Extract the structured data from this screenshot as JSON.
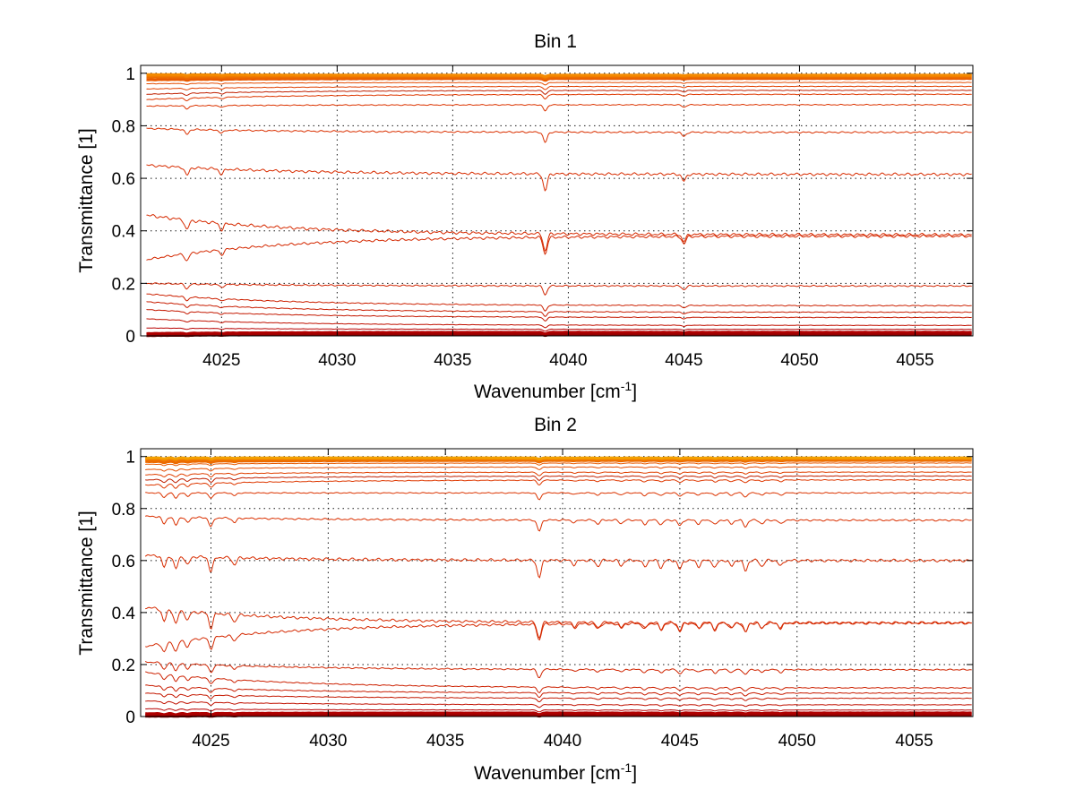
{
  "chart_data": [
    {
      "type": "line",
      "title": "Bin 1",
      "xlabel_main": "Wavenumber [cm",
      "xlabel_sup": "-1",
      "xlabel_end": "]",
      "ylabel": "Transmittance [1]",
      "xlim": [
        4021.5,
        4057.5
      ],
      "ylim": [
        0,
        1.03
      ],
      "xticks": [
        4025,
        4030,
        4035,
        4040,
        4045,
        4050,
        4055
      ],
      "yticks": [
        0,
        0.2,
        0.4,
        0.6,
        0.8,
        1
      ],
      "grid": true,
      "series_levels": [
        {
          "start": 0.0,
          "end": 0.005,
          "color": "#8b0000"
        },
        {
          "start": 0.006,
          "end": 0.01,
          "color": "#a00000"
        },
        {
          "start": 0.01,
          "end": 0.015,
          "color": "#b00000"
        },
        {
          "start": 0.03,
          "end": 0.025,
          "color": "#b80000"
        },
        {
          "start": 0.065,
          "end": 0.04,
          "color": "#c01000"
        },
        {
          "start": 0.1,
          "end": 0.07,
          "color": "#c41800"
        },
        {
          "start": 0.13,
          "end": 0.09,
          "color": "#c81c00"
        },
        {
          "start": 0.16,
          "end": 0.115,
          "color": "#cc2000"
        },
        {
          "start": 0.2,
          "end": 0.19,
          "color": "#d02400"
        },
        {
          "start": 0.29,
          "end": 0.38,
          "color": "#d42800"
        },
        {
          "start": 0.46,
          "end": 0.385,
          "color": "#d62a00"
        },
        {
          "start": 0.65,
          "end": 0.615,
          "color": "#d82c00"
        },
        {
          "start": 0.79,
          "end": 0.775,
          "color": "#da3000"
        },
        {
          "start": 0.875,
          "end": 0.88,
          "color": "#dc3400"
        },
        {
          "start": 0.9,
          "end": 0.92,
          "color": "#de3800"
        },
        {
          "start": 0.92,
          "end": 0.935,
          "color": "#c02000"
        },
        {
          "start": 0.94,
          "end": 0.95,
          "color": "#e04000"
        },
        {
          "start": 0.96,
          "end": 0.965,
          "color": "#e44c00"
        },
        {
          "start": 0.975,
          "end": 0.98,
          "color": "#e85a00"
        },
        {
          "start": 0.985,
          "end": 0.985,
          "color": "#ec6a00"
        },
        {
          "start": 0.99,
          "end": 0.99,
          "color": "#f07a00"
        },
        {
          "start": 0.995,
          "end": 0.993,
          "color": "#f48a00"
        }
      ]
    },
    {
      "type": "line",
      "title": "Bin 2",
      "xlabel_main": "Wavenumber [cm",
      "xlabel_sup": "-1",
      "xlabel_end": "]",
      "ylabel": "Transmittance [1]",
      "xlim": [
        4022,
        4057.5
      ],
      "ylim": [
        0,
        1.03
      ],
      "xticks": [
        4025,
        4030,
        4035,
        4040,
        4045,
        4050,
        4055
      ],
      "yticks": [
        0,
        0.2,
        0.4,
        0.6,
        0.8,
        1
      ],
      "grid": true,
      "series_levels": [
        {
          "start": 0.0,
          "end": 0.005,
          "color": "#8b0000"
        },
        {
          "start": 0.006,
          "end": 0.01,
          "color": "#a00000"
        },
        {
          "start": 0.012,
          "end": 0.015,
          "color": "#b00000"
        },
        {
          "start": 0.03,
          "end": 0.025,
          "color": "#b80000"
        },
        {
          "start": 0.06,
          "end": 0.045,
          "color": "#c01000"
        },
        {
          "start": 0.09,
          "end": 0.07,
          "color": "#c41800"
        },
        {
          "start": 0.12,
          "end": 0.09,
          "color": "#c81c00"
        },
        {
          "start": 0.17,
          "end": 0.11,
          "color": "#cc2000"
        },
        {
          "start": 0.21,
          "end": 0.18,
          "color": "#d02400"
        },
        {
          "start": 0.27,
          "end": 0.36,
          "color": "#d42800"
        },
        {
          "start": 0.42,
          "end": 0.36,
          "color": "#d62a00"
        },
        {
          "start": 0.62,
          "end": 0.6,
          "color": "#d82c00"
        },
        {
          "start": 0.77,
          "end": 0.755,
          "color": "#da3000"
        },
        {
          "start": 0.86,
          "end": 0.86,
          "color": "#dc3400"
        },
        {
          "start": 0.89,
          "end": 0.91,
          "color": "#de3800"
        },
        {
          "start": 0.91,
          "end": 0.925,
          "color": "#c02000"
        },
        {
          "start": 0.93,
          "end": 0.94,
          "color": "#e04000"
        },
        {
          "start": 0.95,
          "end": 0.96,
          "color": "#e44c00"
        },
        {
          "start": 0.97,
          "end": 0.975,
          "color": "#e85a00"
        },
        {
          "start": 0.98,
          "end": 0.985,
          "color": "#ec6a00"
        },
        {
          "start": 0.99,
          "end": 0.99,
          "color": "#f07a00"
        },
        {
          "start": 0.995,
          "end": 0.995,
          "color": "#f4a000"
        }
      ]
    }
  ]
}
